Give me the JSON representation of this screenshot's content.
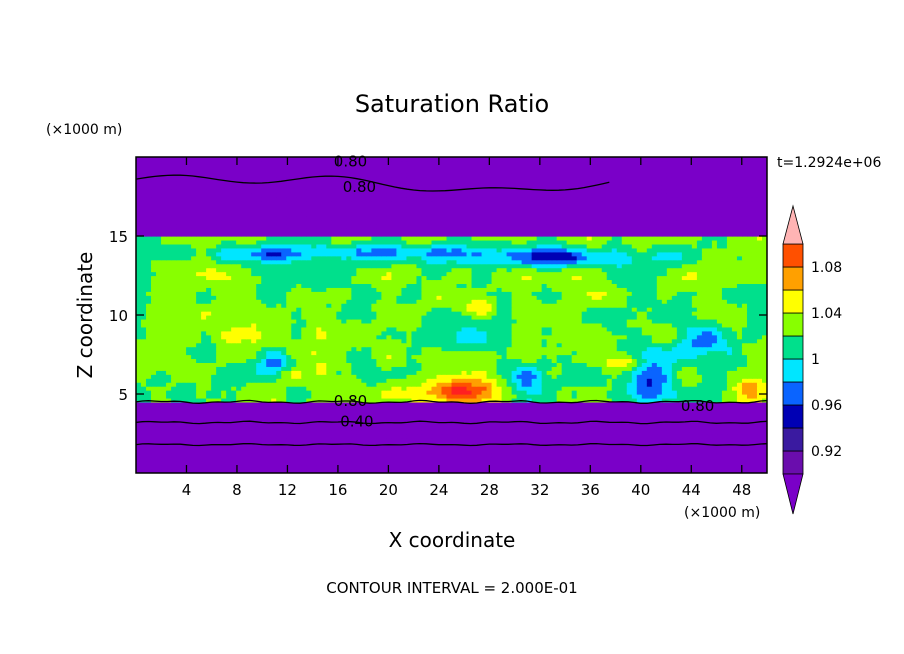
{
  "chart_data": {
    "type": "heatmap",
    "title": "Saturation Ratio",
    "xlabel": "X coordinate",
    "ylabel": "Z coordinate",
    "x_unit": "(×1000 m)",
    "y_unit": "(×1000 m)",
    "time_label": "t=1.2924e+06",
    "footer": "CONTOUR INTERVAL = 2.000E-01",
    "xlim": [
      0,
      50
    ],
    "ylim": [
      0,
      20
    ],
    "x_ticks": [
      {
        "value": 4,
        "label": "4"
      },
      {
        "value": 8,
        "label": "8"
      },
      {
        "value": 12,
        "label": "12"
      },
      {
        "value": 16,
        "label": "16"
      },
      {
        "value": 20,
        "label": "20"
      },
      {
        "value": 24,
        "label": "24"
      },
      {
        "value": 28,
        "label": "28"
      },
      {
        "value": 32,
        "label": "32"
      },
      {
        "value": 36,
        "label": "36"
      },
      {
        "value": 40,
        "label": "40"
      },
      {
        "value": 44,
        "label": "44"
      },
      {
        "value": 48,
        "label": "48"
      }
    ],
    "y_ticks": [
      {
        "value": 5,
        "label": "5"
      },
      {
        "value": 10,
        "label": "10"
      },
      {
        "value": 15,
        "label": "15"
      }
    ],
    "colorbar": {
      "levels": [
        0.9,
        0.92,
        0.94,
        0.96,
        0.98,
        1.0,
        1.02,
        1.04,
        1.06,
        1.08,
        1.1
      ],
      "labels": [
        {
          "value": 0.92,
          "label": "0.92"
        },
        {
          "value": 0.96,
          "label": "0.96"
        },
        {
          "value": 1.0,
          "label": "1"
        },
        {
          "value": 1.04,
          "label": "1.04"
        },
        {
          "value": 1.08,
          "label": "1.08"
        }
      ],
      "colors": [
        "#6a0dad",
        "#3a1aa0",
        "#0000b4",
        "#0a64ff",
        "#00e6ff",
        "#00e08c",
        "#88ff00",
        "#ffff00",
        "#ffa000",
        "#ff5000",
        "#ff2020"
      ],
      "under_color": "#7a00c8",
      "over_color": "#ffb4b4"
    },
    "contours": [
      {
        "level": 0.8,
        "label": "0.80"
      },
      {
        "level": 0.4,
        "label": "0.40"
      }
    ]
  }
}
